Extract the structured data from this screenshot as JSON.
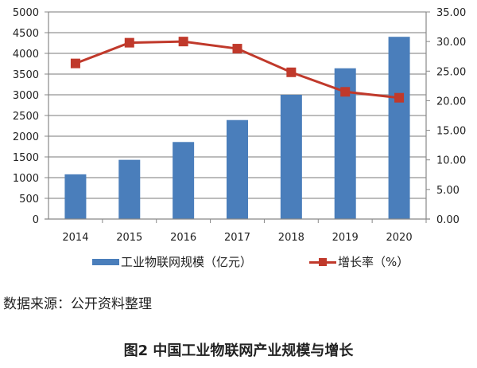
{
  "chart_data": {
    "type": "bar+line",
    "title": "图2 中国工业物联网产业规模与增长",
    "categories": [
      "2014",
      "2015",
      "2016",
      "2017",
      "2018",
      "2019",
      "2020"
    ],
    "series": [
      {
        "name": "工业物联网规模（亿元）",
        "type": "bar",
        "axis": "left",
        "color": "#4a7ebb",
        "values": [
          1080,
          1430,
          1860,
          2390,
          3000,
          3640,
          4400
        ]
      },
      {
        "name": "增长率（%）",
        "type": "line",
        "axis": "right",
        "color": "#c0392b",
        "marker": "square",
        "values": [
          26.3,
          29.8,
          30.0,
          28.8,
          24.8,
          21.5,
          20.5
        ]
      }
    ],
    "left_axis": {
      "min": 0,
      "max": 5000,
      "step": 500,
      "ticks": [
        "0",
        "500",
        "1000",
        "1500",
        "2000",
        "2500",
        "3000",
        "3500",
        "4000",
        "4500",
        "5000"
      ]
    },
    "right_axis": {
      "min": 0,
      "max": 35,
      "step": 5,
      "ticks": [
        "0.00",
        "5.00",
        "10.00",
        "15.00",
        "20.00",
        "25.00",
        "30.00",
        "35.00"
      ]
    },
    "xlabel": "",
    "ylabel": "",
    "grid": true,
    "legend_position": "bottom"
  },
  "legend": {
    "bar_label": "工业物联网规模（亿元）",
    "line_label": "增长率（%）"
  },
  "source": "数据来源：公开资料整理",
  "caption": "图2  中国工业物联网产业规模与增长"
}
